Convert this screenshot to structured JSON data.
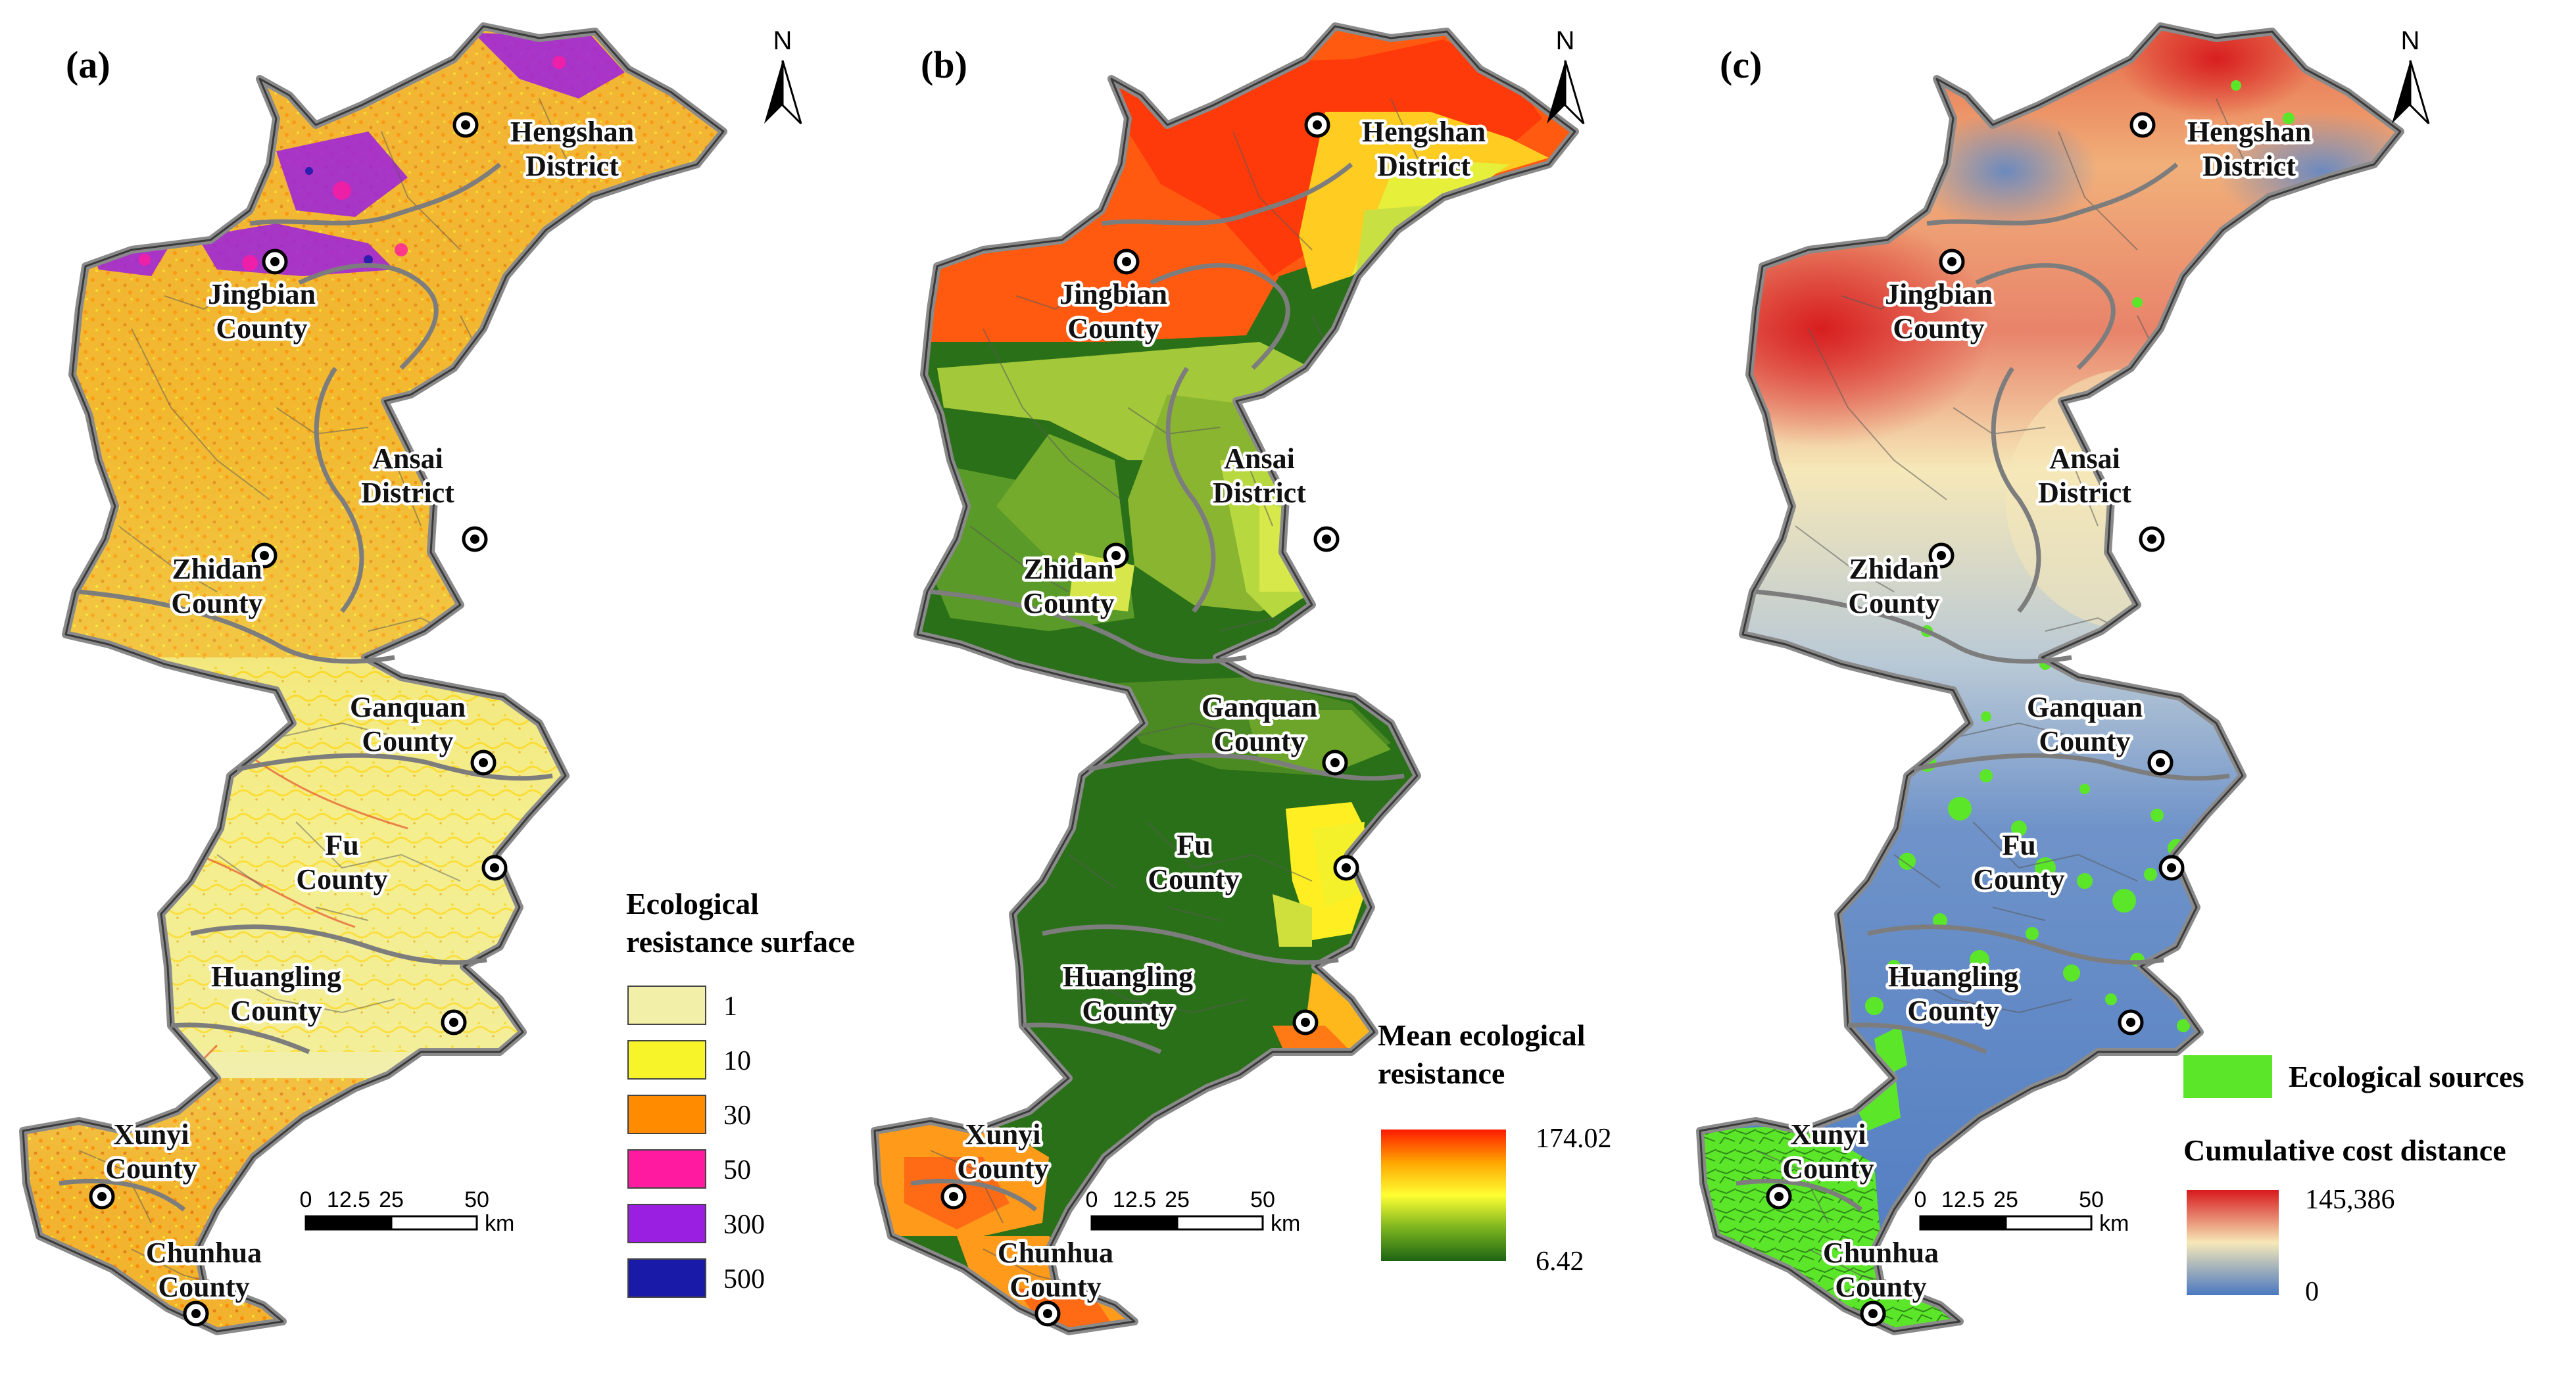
{
  "panels": [
    {
      "id": "a",
      "label": "(a)",
      "north": "N",
      "scale": {
        "ticks": [
          "0",
          "12.5",
          "25",
          "50"
        ],
        "unit": "km"
      },
      "legend": {
        "title_lines": [
          "Ecological",
          "resistance surface"
        ],
        "items": [
          {
            "label": "1",
            "color": "#f2f0a8"
          },
          {
            "label": "10",
            "color": "#f7f52a"
          },
          {
            "label": "30",
            "color": "#ff8c00"
          },
          {
            "label": "50",
            "color": "#ff1aa0"
          },
          {
            "label": "300",
            "color": "#9b1fe0"
          },
          {
            "label": "500",
            "color": "#1a1aa8"
          }
        ]
      }
    },
    {
      "id": "b",
      "label": "(b)",
      "north": "N",
      "scale": {
        "ticks": [
          "0",
          "12.5",
          "25",
          "50"
        ],
        "unit": "km"
      },
      "legend": {
        "title_lines": [
          "Mean ecological",
          "resistance"
        ],
        "max_label": "174.02",
        "min_label": "6.42",
        "gradient": [
          "#ff1a00",
          "#ffa500",
          "#ffff33",
          "#7ab41e",
          "#1e6414"
        ]
      }
    },
    {
      "id": "c",
      "label": "(c)",
      "north": "N",
      "scale": {
        "ticks": [
          "0",
          "12.5",
          "25",
          "50"
        ],
        "unit": "km"
      },
      "legend": {
        "source_label": "Ecological sources",
        "source_color": "#5ce62a",
        "title": "Cumulative cost distance",
        "max_label": "145,386",
        "min_label": "0",
        "gradient": [
          "#d7191c",
          "#f6e8b8",
          "#4a78c0"
        ]
      }
    }
  ],
  "cities": [
    {
      "name_lines": [
        "Hengshan",
        "District"
      ]
    },
    {
      "name_lines": [
        "Jingbian",
        "County"
      ]
    },
    {
      "name_lines": [
        "Ansai",
        "District"
      ]
    },
    {
      "name_lines": [
        "Zhidan",
        "County"
      ]
    },
    {
      "name_lines": [
        "Ganquan",
        "County"
      ]
    },
    {
      "name_lines": [
        "Fu",
        "County"
      ]
    },
    {
      "name_lines": [
        "Huangling",
        "County"
      ]
    },
    {
      "name_lines": [
        "Xunyi",
        "County"
      ]
    },
    {
      "name_lines": [
        "Chunhua",
        "County"
      ]
    }
  ]
}
